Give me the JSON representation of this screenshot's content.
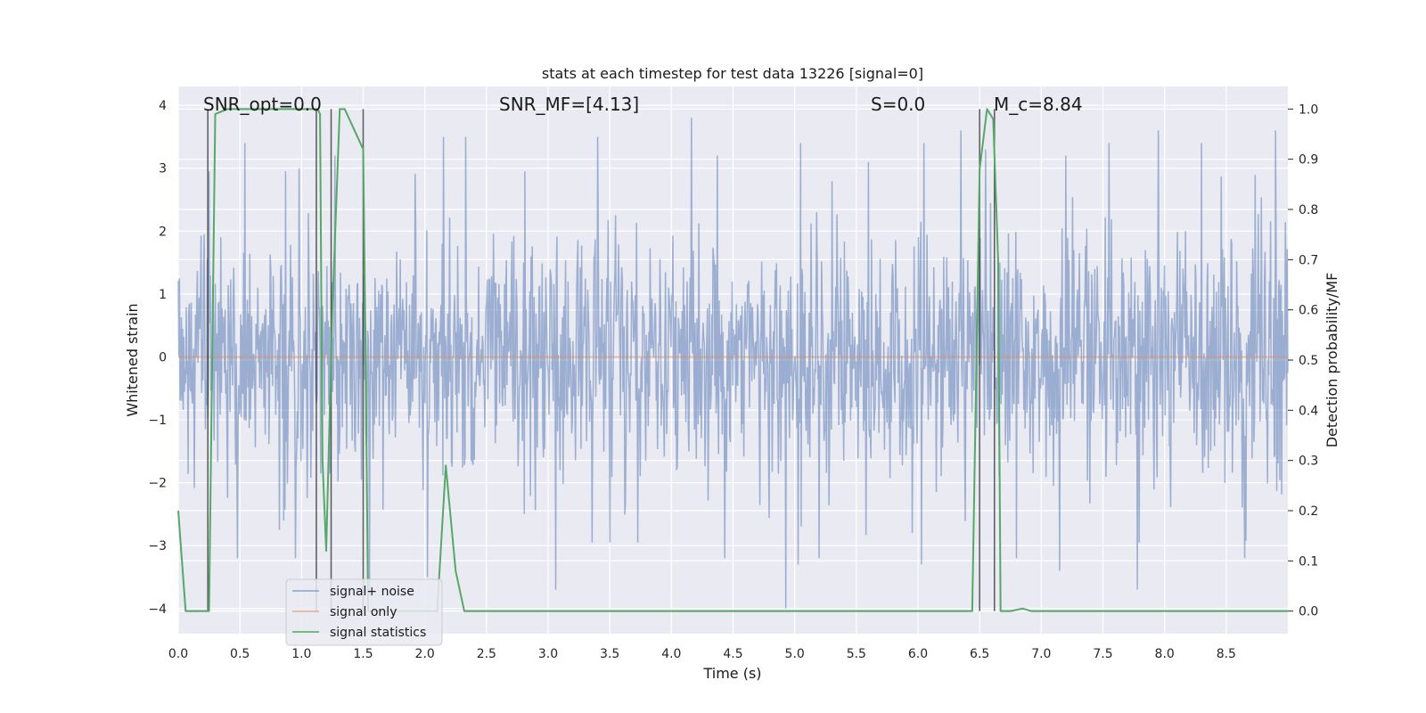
{
  "chart_data": {
    "type": "line",
    "title": "stats at each timestep for test data 13226 [signal=0]",
    "xlabel": "Time (s)",
    "ylabel": "Whitened strain",
    "y2label": "Detection probability/MF",
    "xlim": [
      0.0,
      9.0
    ],
    "ylim": [
      -4.4,
      4.3
    ],
    "y2lim": [
      -0.045,
      1.045
    ],
    "xticks": [
      "0.0",
      "0.5",
      "1.0",
      "1.5",
      "2.0",
      "2.5",
      "3.0",
      "3.5",
      "4.0",
      "4.5",
      "5.0",
      "5.5",
      "6.0",
      "6.5",
      "7.0",
      "7.5",
      "8.0",
      "8.5"
    ],
    "yticks": [
      "−4",
      "−3",
      "−2",
      "−1",
      "0",
      "1",
      "2",
      "3",
      "4"
    ],
    "y2ticks": [
      "0.0",
      "0.1",
      "0.2",
      "0.3",
      "0.4",
      "0.5",
      "0.6",
      "0.7",
      "0.8",
      "0.9",
      "1.0"
    ],
    "grid": true,
    "background_color": "#eaeaf2",
    "annotations": {
      "snr_opt": "SNR_opt=0.0",
      "snr_mf": "SNR_MF=[4.13]",
      "s": "S=0.0",
      "mc": "M_c=8.84"
    },
    "legend": {
      "placement": "lower-left",
      "entries": [
        "signal+ noise",
        "signal only",
        "signal statistics"
      ]
    },
    "series": [
      {
        "name": "signal+ noise",
        "color": "#4c72b0",
        "note": "whitened noise, approx. gaussian with sigma 1, peaks up to about 3.7 and down to about -4.0",
        "peaks_positive": [
          [
            0.54,
            3.4
          ],
          [
            0.98,
            3.0
          ],
          [
            1.27,
            3.2
          ],
          [
            2.15,
            3.5
          ],
          [
            2.33,
            3.5
          ],
          [
            3.4,
            3.5
          ],
          [
            4.16,
            3.8
          ],
          [
            4.37,
            3.2
          ],
          [
            5.05,
            3.4
          ],
          [
            5.6,
            3.1
          ],
          [
            6.05,
            3.4
          ],
          [
            6.35,
            3.6
          ],
          [
            6.55,
            3.3
          ],
          [
            7.2,
            3.2
          ],
          [
            7.55,
            3.4
          ],
          [
            7.95,
            3.6
          ],
          [
            8.3,
            3.4
          ],
          [
            8.9,
            3.6
          ]
        ],
        "peaks_negative": [
          [
            0.48,
            -3.2
          ],
          [
            0.95,
            -3.2
          ],
          [
            1.55,
            -3.8
          ],
          [
            2.02,
            -3.5
          ],
          [
            3.06,
            -3.7
          ],
          [
            4.43,
            -3.2
          ],
          [
            4.93,
            -4.0
          ],
          [
            5.03,
            -3.3
          ],
          [
            5.2,
            -3.2
          ],
          [
            6.03,
            -3.3
          ],
          [
            6.8,
            -3.2
          ],
          [
            7.15,
            -3.4
          ],
          [
            7.78,
            -3.7
          ],
          [
            8.65,
            -3.2
          ]
        ]
      },
      {
        "name": "signal only",
        "color": "#dd8452",
        "x": [
          0.0,
          9.0
        ],
        "y": [
          0.0,
          0.0
        ]
      },
      {
        "name": "signal statistics",
        "color": "#55a868",
        "axis": "right",
        "x": [
          0.0,
          0.06,
          0.25,
          0.3,
          0.4,
          0.65,
          0.8,
          1.0,
          1.13,
          1.15,
          1.17,
          1.2,
          1.25,
          1.31,
          1.35,
          1.5,
          1.52,
          1.54,
          1.6,
          2.0,
          2.1,
          2.17,
          2.25,
          2.32,
          2.5,
          3.0,
          4.0,
          5.0,
          6.0,
          6.44,
          6.5,
          6.56,
          6.61,
          6.65,
          6.67,
          6.69,
          6.75,
          6.85,
          6.92,
          7.5,
          8.0,
          8.5,
          9.0
        ],
        "y": [
          0.2,
          0.0,
          0.0,
          0.99,
          1.0,
          1.0,
          1.0,
          1.0,
          1.0,
          0.99,
          0.3,
          0.12,
          0.6,
          1.0,
          1.0,
          0.92,
          0.5,
          0.0,
          0.0,
          0.0,
          0.0,
          0.29,
          0.08,
          0.0,
          0.0,
          0.0,
          0.0,
          0.0,
          0.0,
          0.0,
          0.88,
          1.0,
          0.98,
          0.7,
          0.0,
          0.0,
          0.0,
          0.005,
          0.0,
          0.0,
          0.0,
          0.0,
          0.0
        ]
      }
    ],
    "vertical_lines": {
      "color": "#333333",
      "x": [
        0.24,
        1.12,
        1.24,
        1.5,
        6.5,
        6.62
      ]
    }
  }
}
